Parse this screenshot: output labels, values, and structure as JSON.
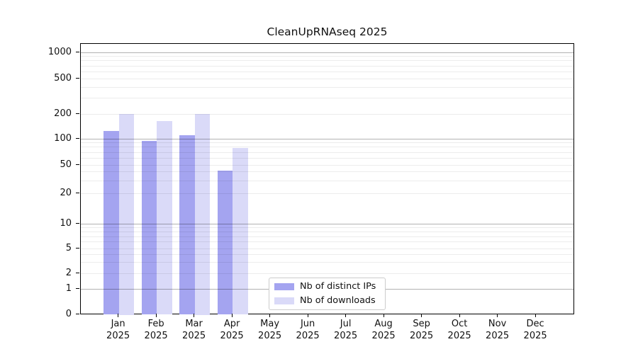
{
  "title": "CleanUpRNAseq 2025",
  "legend": {
    "items": [
      {
        "label": "Nb of distinct IPs",
        "color": "#a4a4f0"
      },
      {
        "label": "Nb of downloads",
        "color": "#dadaf8"
      }
    ]
  },
  "chart_data": {
    "type": "bar",
    "title": "CleanUpRNAseq 2025",
    "categories": [
      "Jan 2025",
      "Feb 2025",
      "Mar 2025",
      "Apr 2025",
      "May 2025",
      "Jun 2025",
      "Jul 2025",
      "Aug 2025",
      "Sep 2025",
      "Oct 2025",
      "Nov 2025",
      "Dec 2025"
    ],
    "series": [
      {
        "name": "Nb of distinct IPs",
        "color": "#a4a4f0",
        "values": [
          125,
          95,
          110,
          42,
          null,
          null,
          null,
          null,
          null,
          null,
          null,
          null
        ]
      },
      {
        "name": "Nb of downloads",
        "color": "#dadaf8",
        "values": [
          200,
          165,
          200,
          78,
          null,
          null,
          null,
          null,
          null,
          null,
          null,
          null
        ]
      }
    ],
    "yticks": [
      0,
      1,
      2,
      5,
      10,
      20,
      50,
      100,
      200,
      500,
      1000
    ],
    "xlabel": "",
    "ylabel": "",
    "yscale": "log-like (ticks 0,1,2,5,10,20,50,100,200,500,1000)",
    "ylim": [
      0,
      1000
    ],
    "grid": true,
    "grid_minor": true,
    "legend_position": "inside lower-center"
  }
}
